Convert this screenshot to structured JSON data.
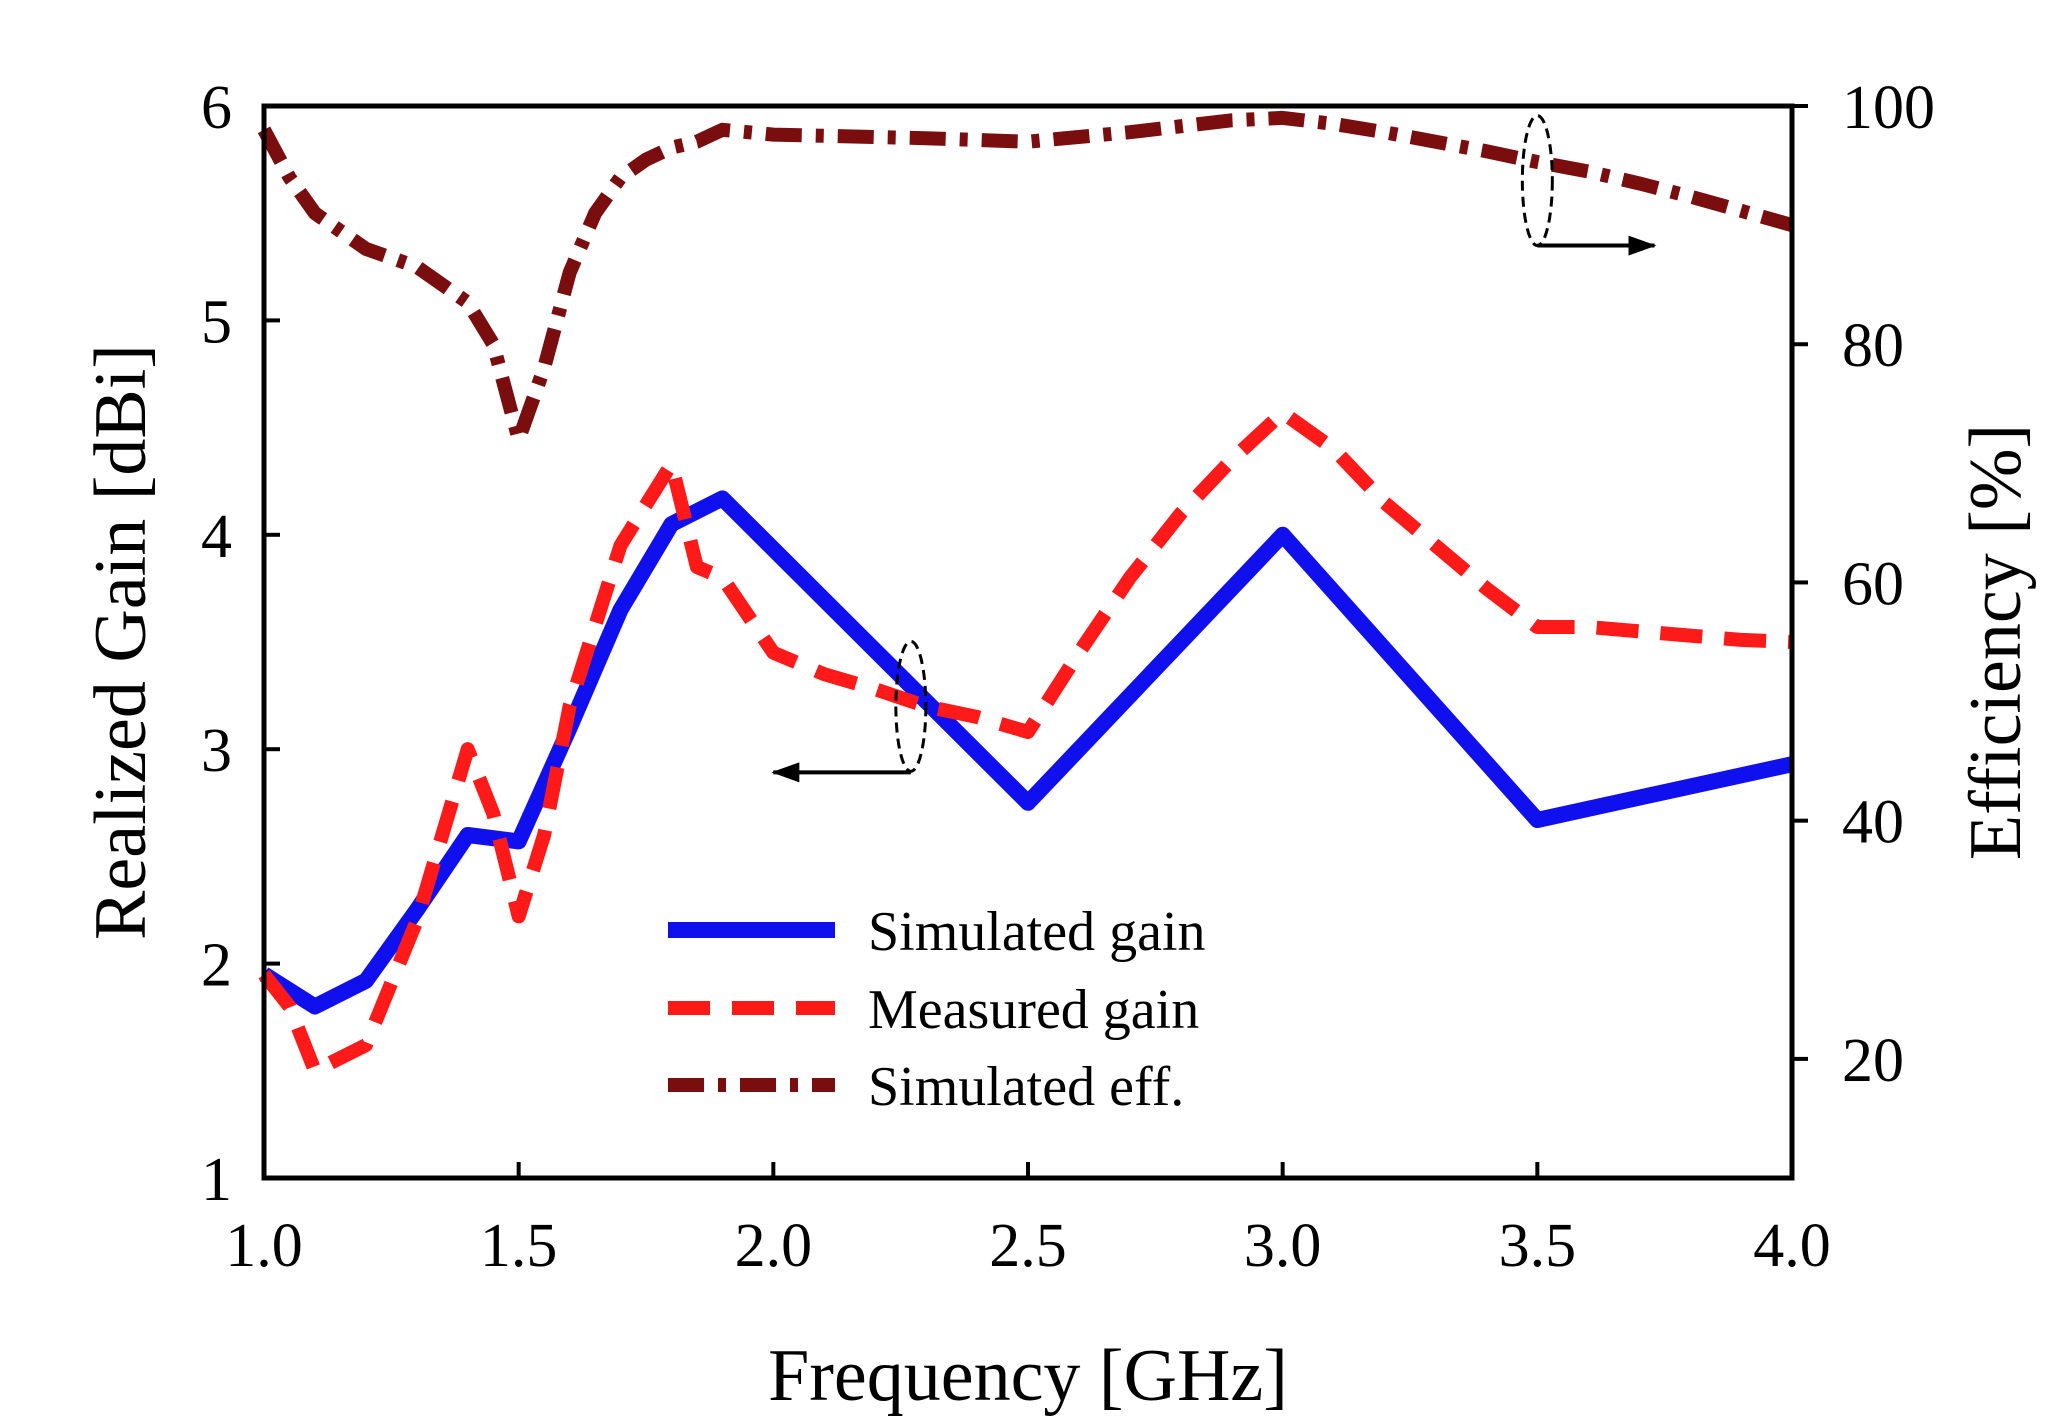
{
  "chart_data": {
    "type": "line",
    "title": "",
    "xlabel": "Frequency [GHz]",
    "ylabel": "Realized Gain [dBi]",
    "y2label": "Efficiency [%]",
    "xlim": [
      1.0,
      4.0
    ],
    "ylim": [
      1,
      6
    ],
    "y2lim": [
      10,
      100
    ],
    "x_ticks": [
      "1.0",
      "1.5",
      "2.0",
      "2.5",
      "3.0",
      "3.5",
      "4.0"
    ],
    "y_ticks": [
      "1",
      "2",
      "3",
      "4",
      "5",
      "6"
    ],
    "y2_ticks": [
      "20",
      "40",
      "60",
      "80",
      "100"
    ],
    "legend_position": "lower-center",
    "series": [
      {
        "name": "Simulated gain",
        "axis": "left",
        "color": "#1010ee",
        "style": "solid",
        "x": [
          1.0,
          1.1,
          1.2,
          1.3,
          1.4,
          1.5,
          1.6,
          1.7,
          1.8,
          1.9,
          2.5,
          3.0,
          3.5,
          4.0
        ],
        "values": [
          1.95,
          1.8,
          1.92,
          2.25,
          2.6,
          2.57,
          3.1,
          3.65,
          4.05,
          4.17,
          2.75,
          4.0,
          2.67,
          2.93
        ]
      },
      {
        "name": "Measured gain",
        "axis": "left",
        "color": "#ff1a1a",
        "style": "dashed",
        "x": [
          1.0,
          1.05,
          1.1,
          1.2,
          1.3,
          1.4,
          1.45,
          1.5,
          1.55,
          1.6,
          1.7,
          1.8,
          1.85,
          1.9,
          2.0,
          2.1,
          2.2,
          2.3,
          2.4,
          2.5,
          2.6,
          2.7,
          2.8,
          2.9,
          3.0,
          3.1,
          3.2,
          3.3,
          3.4,
          3.5,
          3.6,
          3.7,
          3.8,
          3.9,
          4.0
        ],
        "values": [
          1.95,
          1.8,
          1.5,
          1.62,
          2.2,
          3.0,
          2.7,
          2.22,
          2.6,
          3.2,
          3.95,
          4.33,
          3.85,
          3.8,
          3.45,
          3.35,
          3.28,
          3.2,
          3.15,
          3.08,
          3.45,
          3.8,
          4.1,
          4.35,
          4.57,
          4.4,
          4.15,
          3.95,
          3.75,
          3.57,
          3.57,
          3.55,
          3.53,
          3.51,
          3.5
        ]
      },
      {
        "name": "Simulated eff.",
        "axis": "right",
        "color": "#7a0d0d",
        "style": "dash-dot",
        "x": [
          1.0,
          1.05,
          1.1,
          1.2,
          1.3,
          1.35,
          1.4,
          1.45,
          1.5,
          1.55,
          1.6,
          1.65,
          1.7,
          1.75,
          1.8,
          1.85,
          1.9,
          2.0,
          2.1,
          2.2,
          2.3,
          2.5,
          2.7,
          2.9,
          3.0,
          3.1,
          3.2,
          3.3,
          3.4,
          3.5,
          3.6,
          3.7,
          3.8,
          3.9,
          4.0
        ],
        "values": [
          98,
          94,
          91,
          88,
          86.5,
          85,
          83.5,
          80,
          72,
          78,
          86,
          91,
          94,
          95.5,
          96.5,
          97,
          98,
          97.6,
          97.5,
          97.4,
          97.3,
          97,
          97.8,
          98.8,
          99,
          98.5,
          97.8,
          97,
          96.2,
          95.3,
          94.5,
          93.5,
          92.4,
          91.2,
          90
        ]
      }
    ],
    "annotations": [
      {
        "type": "ellipse-arrow",
        "target_axis": "left",
        "direction": "left",
        "x": 2.27,
        "y": 3.2,
        "arrow_to_x": 2.0
      },
      {
        "type": "ellipse-arrow",
        "target_axis": "right",
        "direction": "right",
        "x": 3.5,
        "y": 95,
        "arrow_to_x": 3.73
      }
    ]
  }
}
